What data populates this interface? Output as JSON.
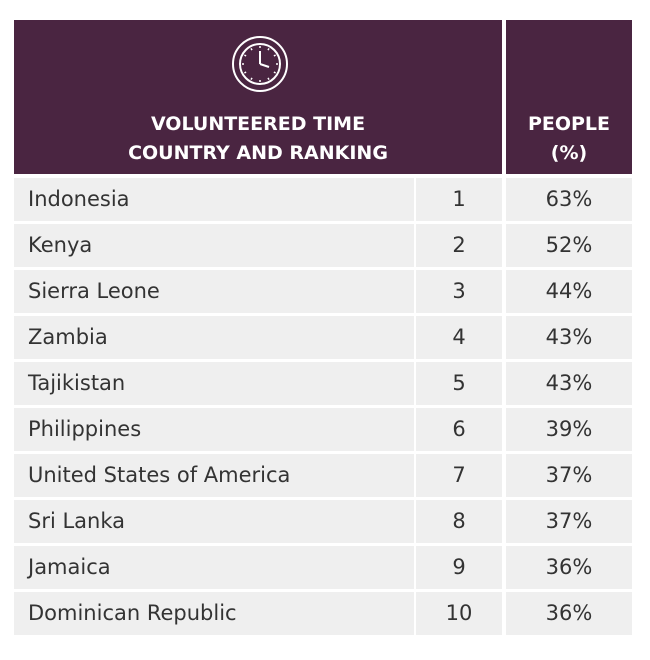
{
  "header": {
    "title": [
      "VOLUNTEERED TIME",
      "COUNTRY AND RANKING"
    ],
    "people": [
      "PEOPLE",
      "(%)"
    ]
  },
  "table": {
    "rows": [
      [
        "Indonesia",
        "1",
        "63%"
      ],
      [
        "Kenya",
        "2",
        "52%"
      ],
      [
        "Sierra Leone",
        "3",
        "44%"
      ],
      [
        "Zambia",
        "4",
        "43%"
      ],
      [
        "Tajikistan",
        "5",
        "43%"
      ],
      [
        "Philippines",
        "6",
        "39%"
      ],
      [
        "United States of America",
        "7",
        "37%"
      ],
      [
        "Sri Lanka",
        "8",
        "37%"
      ],
      [
        "Jamaica",
        "9",
        "36%"
      ],
      [
        "Dominican Republic",
        "10",
        "36%"
      ]
    ]
  }
}
